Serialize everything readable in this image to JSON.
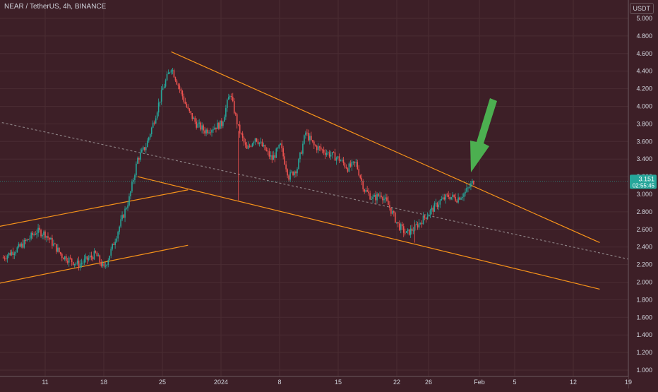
{
  "header": {
    "symbol_title": "NEAR / TetherUS, 4h, BINANCE",
    "currency_button": "USDT"
  },
  "colors": {
    "background": "#3d1f27",
    "grid": "#4a2c33",
    "up_candle": "#26a69a",
    "down_candle": "#ef5350",
    "trendline": "#f7931a",
    "midline": "#8a7f82",
    "arrow": "#4caf50",
    "axis_text": "#d1d4dc",
    "price_badge": "#26a69a"
  },
  "price_badge": {
    "price": "3.151",
    "countdown": "02:55:45"
  },
  "chart_data": {
    "type": "candlestick",
    "title": "NEAR / TetherUS, 4h, BINANCE",
    "y_ticks": [
      "5.000",
      "4.800",
      "4.600",
      "4.400",
      "4.200",
      "4.000",
      "3.800",
      "3.600",
      "3.400",
      "3.200",
      "3.000",
      "2.800",
      "2.600",
      "2.400",
      "2.200",
      "2.000",
      "1.800",
      "1.600",
      "1.400",
      "1.200",
      "1.000"
    ],
    "ylim": [
      0.96,
      5.18
    ],
    "x_ticks": [
      "11",
      "18",
      "25",
      "2024",
      "8",
      "15",
      "22",
      "26",
      "Feb",
      "5",
      "12",
      "19"
    ],
    "grid": true,
    "series": [
      {
        "kind": "close_path",
        "points": [
          [
            "Dec 6",
            2.28
          ],
          [
            "Dec 8",
            2.4
          ],
          [
            "Dec 10",
            2.58
          ],
          [
            "Dec 11",
            2.55
          ],
          [
            "Dec 13",
            2.3
          ],
          [
            "Dec 15",
            2.2
          ],
          [
            "Dec 17",
            2.32
          ],
          [
            "Dec 18",
            2.15
          ],
          [
            "Dec 19",
            2.4
          ],
          [
            "Dec 20",
            2.68
          ],
          [
            "Dec 21",
            2.95
          ],
          [
            "Dec 22",
            3.4
          ],
          [
            "Dec 23",
            3.55
          ],
          [
            "Dec 24",
            3.85
          ],
          [
            "Dec 25",
            4.2
          ],
          [
            "Dec 26",
            4.45
          ],
          [
            "Dec 27",
            4.2
          ],
          [
            "Dec 28",
            3.95
          ],
          [
            "Dec 29",
            3.8
          ],
          [
            "Dec 30",
            3.72
          ],
          [
            "Jan 1",
            3.8
          ],
          [
            "Jan 2",
            4.15
          ],
          [
            "Jan 3",
            3.75
          ],
          [
            "Jan 4",
            3.5
          ],
          [
            "Jan 5",
            3.65
          ],
          [
            "Jan 7",
            3.4
          ],
          [
            "Jan 8",
            3.55
          ],
          [
            "Jan 9",
            3.2
          ],
          [
            "Jan 10",
            3.3
          ],
          [
            "Jan 11",
            3.7
          ],
          [
            "Jan 12",
            3.55
          ],
          [
            "Jan 14",
            3.45
          ],
          [
            "Jan 15",
            3.4
          ],
          [
            "Jan 16",
            3.3
          ],
          [
            "Jan 17",
            3.35
          ],
          [
            "Jan 18",
            3.05
          ],
          [
            "Jan 19",
            2.95
          ],
          [
            "Jan 20",
            3.0
          ],
          [
            "Jan 21",
            2.85
          ],
          [
            "Jan 22",
            2.65
          ],
          [
            "Jan 23",
            2.55
          ],
          [
            "Jan 24",
            2.62
          ],
          [
            "Jan 25",
            2.72
          ],
          [
            "Jan 26",
            2.82
          ],
          [
            "Jan 27",
            2.92
          ],
          [
            "Jan 28",
            2.98
          ],
          [
            "Jan 29",
            2.95
          ],
          [
            "Jan 30",
            3.02
          ],
          [
            "Jan 31",
            3.15
          ]
        ]
      }
    ],
    "trendlines": [
      {
        "name": "upper falling line",
        "from": [
          "Dec 26",
          4.62
        ],
        "to": [
          "Feb 15",
          2.45
        ]
      },
      {
        "name": "lower falling line",
        "from": [
          "Dec 22",
          3.2
        ],
        "to": [
          "Feb 15",
          1.92
        ]
      },
      {
        "name": "dashed midline",
        "from": [
          "Nov 26",
          4.02
        ],
        "to": [
          "Feb 19",
          2.25
        ]
      },
      {
        "name": "old channel top",
        "from": [
          "Dec 1",
          2.55
        ],
        "to": [
          "Dec 28",
          3.05
        ]
      },
      {
        "name": "old channel bottom",
        "from": [
          "Dec 1",
          1.9
        ],
        "to": [
          "Dec 28",
          2.42
        ]
      }
    ]
  }
}
